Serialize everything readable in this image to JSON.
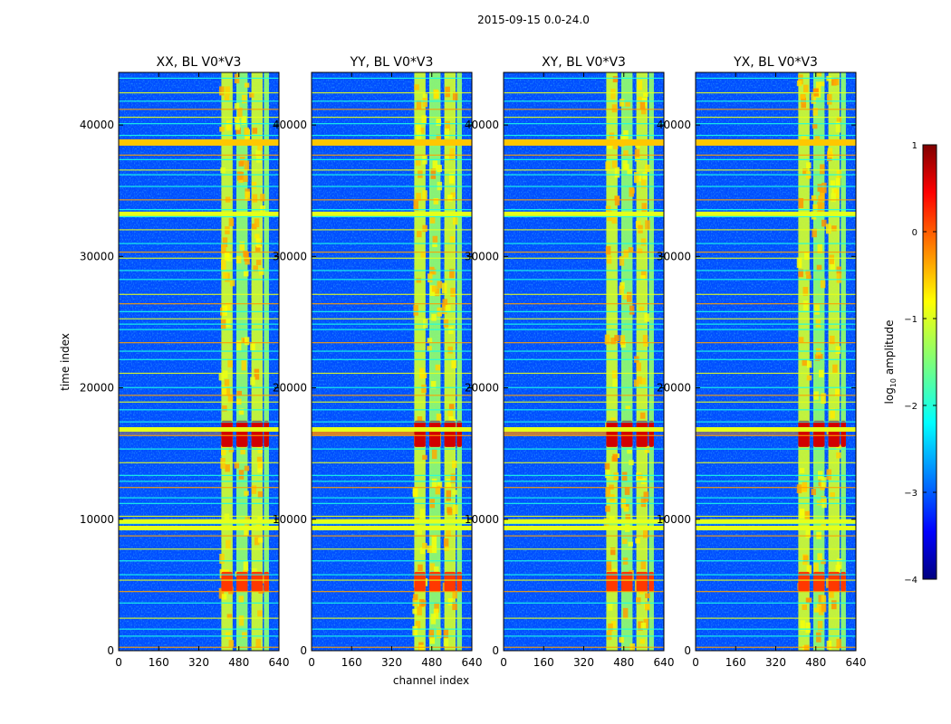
{
  "figure_title": "2015-09-15 0.0-24.0",
  "chart_data": {
    "type": "heatmap",
    "suptitle": "2015-09-15 0.0-24.0",
    "xlabel": "channel index",
    "ylabel": "time index",
    "xlim": [
      0,
      640
    ],
    "ylim": [
      0,
      44000
    ],
    "xticks": [
      0,
      160,
      320,
      480,
      640
    ],
    "yticks": [
      0,
      10000,
      20000,
      30000,
      40000
    ],
    "xtick_labels": [
      "0",
      "160",
      "320",
      "480",
      "640"
    ],
    "ytick_labels": [
      "0",
      "10000",
      "20000",
      "30000",
      "40000"
    ],
    "panels": [
      {
        "title": "XX, BL V0*V3",
        "pol": "XX"
      },
      {
        "title": "YY, BL V0*V3",
        "pol": "YY"
      },
      {
        "title": "XY, BL V0*V3",
        "pol": "XY"
      },
      {
        "title": "YX, BL V0*V3",
        "pol": "YX"
      }
    ],
    "colorbar": {
      "label": "log10 amplitude",
      "label_main": "log",
      "label_sub": "10",
      "label_rest": " amplitude",
      "colormap": "jet",
      "range": [
        -4,
        1
      ],
      "ticks": [
        1,
        0,
        -1,
        -2,
        -3,
        -4
      ],
      "tick_labels": [
        "1",
        "0",
        "−1",
        "−2",
        "−3",
        "−4"
      ]
    },
    "features": {
      "background_log_amp": -3.0,
      "signal_channel_range": [
        410,
        600
      ],
      "signal_sub_bands": [
        [
          410,
          455
        ],
        [
          470,
          515
        ],
        [
          530,
          575
        ],
        [
          580,
          600
        ]
      ],
      "signal_log_amp": -1.2,
      "strong_time_ranges": [
        [
          15500,
          17500
        ],
        [
          4500,
          6000
        ]
      ],
      "strong_log_amp": 0.6,
      "saturated_time_rows": [
        38700,
        33200,
        16800,
        9800,
        9300
      ]
    }
  }
}
